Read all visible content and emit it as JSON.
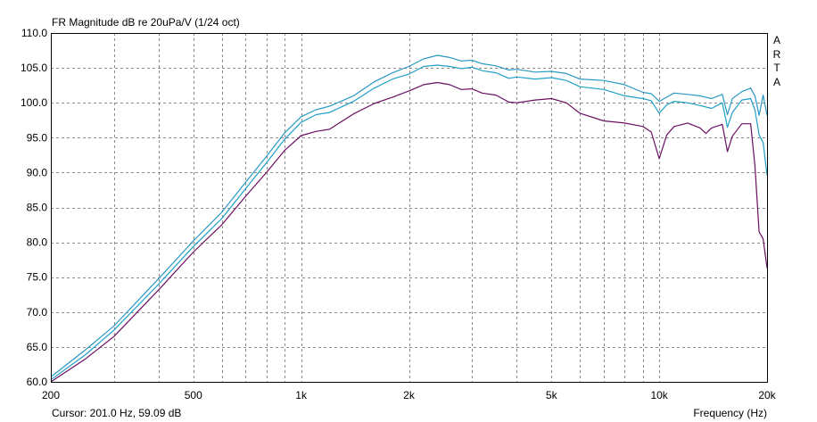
{
  "header": {
    "title": "FR Magnitude dB re 20uPa/V (1/24 oct)"
  },
  "footer": {
    "cursor": "Cursor: 201.0 Hz, 59.09 dB",
    "xlabel": "Frequency (Hz)"
  },
  "brand": [
    "A",
    "R",
    "T",
    "A"
  ],
  "chart_data": {
    "type": "line",
    "title": "FR Magnitude dB re 20uPa/V (1/24 oct)",
    "xlabel": "Frequency (Hz)",
    "ylabel": "",
    "xscale": "log",
    "xlim": [
      200,
      20000
    ],
    "ylim": [
      60,
      110
    ],
    "grid": true,
    "x_ticks": [
      {
        "value": 200,
        "label": "200"
      },
      {
        "value": 500,
        "label": "500"
      },
      {
        "value": 1000,
        "label": "1k"
      },
      {
        "value": 2000,
        "label": "2k"
      },
      {
        "value": 5000,
        "label": "5k"
      },
      {
        "value": 10000,
        "label": "10k"
      },
      {
        "value": 20000,
        "label": "20k"
      }
    ],
    "y_ticks": [
      {
        "value": 60,
        "label": "60.0"
      },
      {
        "value": 65,
        "label": "65.0"
      },
      {
        "value": 70,
        "label": "70.0"
      },
      {
        "value": 75,
        "label": "75.0"
      },
      {
        "value": 80,
        "label": "80.0"
      },
      {
        "value": 85,
        "label": "85.0"
      },
      {
        "value": 90,
        "label": "90.0"
      },
      {
        "value": 95,
        "label": "95.0"
      },
      {
        "value": 100,
        "label": "100.0"
      },
      {
        "value": 105,
        "label": "105.0"
      },
      {
        "value": 110,
        "label": "110.0"
      }
    ],
    "series": [
      {
        "color": "#1f9fc9",
        "points": [
          [
            200,
            60.3
          ],
          [
            250,
            63.9
          ],
          [
            300,
            67.4
          ],
          [
            400,
            74.0
          ],
          [
            500,
            79.4
          ],
          [
            600,
            83.4
          ],
          [
            700,
            87.7
          ],
          [
            800,
            91.4
          ],
          [
            900,
            94.8
          ],
          [
            1000,
            97.2
          ],
          [
            1100,
            98.3
          ],
          [
            1200,
            98.6
          ],
          [
            1400,
            100.2
          ],
          [
            1600,
            102.1
          ],
          [
            1800,
            103.4
          ],
          [
            2000,
            104.1
          ],
          [
            2200,
            105.2
          ],
          [
            2400,
            105.4
          ],
          [
            2600,
            105.2
          ],
          [
            2800,
            104.9
          ],
          [
            3000,
            105.1
          ],
          [
            3200,
            104.6
          ],
          [
            3500,
            104.3
          ],
          [
            3800,
            103.5
          ],
          [
            4000,
            103.7
          ],
          [
            4500,
            103.4
          ],
          [
            5000,
            103.6
          ],
          [
            5500,
            103.2
          ],
          [
            6000,
            102.3
          ],
          [
            7000,
            101.9
          ],
          [
            8000,
            101.0
          ],
          [
            9000,
            100.6
          ],
          [
            9500,
            100.3
          ],
          [
            10000,
            98.5
          ],
          [
            10500,
            99.7
          ],
          [
            11000,
            100.2
          ],
          [
            12000,
            100.0
          ],
          [
            13000,
            99.6
          ],
          [
            14000,
            99.2
          ],
          [
            15000,
            100.0
          ],
          [
            15500,
            96.5
          ],
          [
            16000,
            98.6
          ],
          [
            17000,
            100.4
          ],
          [
            18000,
            100.6
          ],
          [
            18500,
            99.0
          ],
          [
            19000,
            95.4
          ],
          [
            19500,
            94.3
          ],
          [
            20000,
            89.6
          ]
        ]
      },
      {
        "color": "#2a98c4",
        "points": [
          [
            200,
            60.7
          ],
          [
            250,
            64.6
          ],
          [
            300,
            68.0
          ],
          [
            400,
            74.8
          ],
          [
            500,
            80.2
          ],
          [
            600,
            84.3
          ],
          [
            700,
            88.6
          ],
          [
            800,
            92.3
          ],
          [
            900,
            95.7
          ],
          [
            1000,
            98.0
          ],
          [
            1100,
            99.0
          ],
          [
            1200,
            99.5
          ],
          [
            1400,
            101.0
          ],
          [
            1600,
            103.0
          ],
          [
            1800,
            104.3
          ],
          [
            2000,
            105.2
          ],
          [
            2200,
            106.3
          ],
          [
            2400,
            106.8
          ],
          [
            2600,
            106.5
          ],
          [
            2800,
            106.0
          ],
          [
            3000,
            106.1
          ],
          [
            3200,
            105.6
          ],
          [
            3500,
            105.3
          ],
          [
            3800,
            104.7
          ],
          [
            4000,
            104.8
          ],
          [
            4500,
            104.4
          ],
          [
            5000,
            104.5
          ],
          [
            5500,
            104.2
          ],
          [
            6000,
            103.4
          ],
          [
            7000,
            103.2
          ],
          [
            8000,
            102.6
          ],
          [
            9000,
            101.5
          ],
          [
            9500,
            101.3
          ],
          [
            10000,
            100.2
          ],
          [
            10500,
            100.8
          ],
          [
            11000,
            101.4
          ],
          [
            12000,
            101.2
          ],
          [
            13000,
            101.0
          ],
          [
            14000,
            100.6
          ],
          [
            15000,
            101.2
          ],
          [
            15500,
            98.3
          ],
          [
            16000,
            100.6
          ],
          [
            17000,
            101.6
          ],
          [
            18000,
            102.1
          ],
          [
            18500,
            101.0
          ],
          [
            19000,
            98.2
          ],
          [
            19500,
            101.1
          ],
          [
            20000,
            98.2
          ]
        ]
      },
      {
        "color": "#6b0f62",
        "points": [
          [
            200,
            60.0
          ],
          [
            250,
            63.3
          ],
          [
            300,
            66.5
          ],
          [
            400,
            73.2
          ],
          [
            500,
            78.6
          ],
          [
            600,
            82.5
          ],
          [
            700,
            86.6
          ],
          [
            800,
            90.0
          ],
          [
            900,
            93.2
          ],
          [
            1000,
            95.3
          ],
          [
            1100,
            95.9
          ],
          [
            1200,
            96.2
          ],
          [
            1400,
            98.4
          ],
          [
            1600,
            99.9
          ],
          [
            1800,
            100.8
          ],
          [
            2000,
            101.7
          ],
          [
            2200,
            102.6
          ],
          [
            2400,
            102.9
          ],
          [
            2600,
            102.6
          ],
          [
            2800,
            101.9
          ],
          [
            3000,
            102.0
          ],
          [
            3200,
            101.4
          ],
          [
            3500,
            101.1
          ],
          [
            3800,
            100.1
          ],
          [
            4000,
            100.0
          ],
          [
            4500,
            100.4
          ],
          [
            5000,
            100.6
          ],
          [
            5500,
            100.0
          ],
          [
            6000,
            98.5
          ],
          [
            7000,
            97.4
          ],
          [
            8000,
            97.1
          ],
          [
            9000,
            96.6
          ],
          [
            9500,
            95.8
          ],
          [
            10000,
            92.0
          ],
          [
            10500,
            95.4
          ],
          [
            11000,
            96.6
          ],
          [
            12000,
            97.1
          ],
          [
            13000,
            96.4
          ],
          [
            13500,
            95.6
          ],
          [
            14000,
            96.4
          ],
          [
            15000,
            96.9
          ],
          [
            15500,
            93.0
          ],
          [
            16000,
            95.2
          ],
          [
            17000,
            97.0
          ],
          [
            18000,
            97.0
          ],
          [
            18500,
            91.0
          ],
          [
            19000,
            81.5
          ],
          [
            19500,
            80.5
          ],
          [
            20000,
            76.3
          ]
        ]
      }
    ]
  }
}
